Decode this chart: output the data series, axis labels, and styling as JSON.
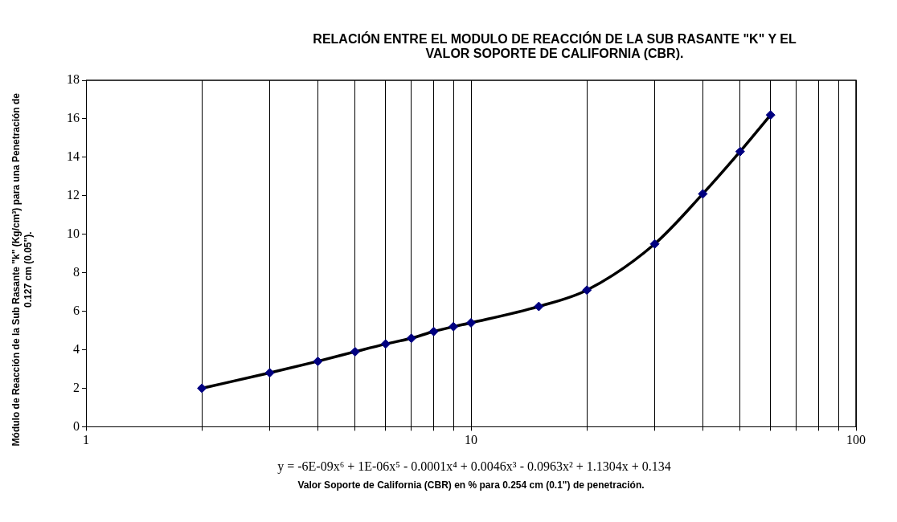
{
  "chart_data": {
    "type": "scatter",
    "title": "RELACIÓN ENTRE EL MODULO DE REACCIÓN DE LA SUB RASANTE \"K\" Y EL VALOR SOPORTE DE CALIFORNIA (CBR).",
    "xlabel": "Valor Soporte de California (CBR) en % para 0.254 cm (0.1\") de penetración.",
    "ylabel": "Módulo de Reacción de la Sub Rasante \"k\" (Kg/cm³) para una Penetración de 0.127 cm (0.05\").",
    "annotations": [
      "y = -6E-09x⁶ + 1E-06x⁵ - 0.0001x⁴ + 0.0046x³ - 0.0963x² + 1.1304x + 0.134"
    ],
    "x": [
      2,
      3,
      4,
      5,
      6,
      7,
      8,
      9,
      10,
      15,
      20,
      30,
      40,
      50,
      60
    ],
    "series": [
      {
        "type": "line",
        "color": "#000000",
        "line_style": "solid",
        "marker": "none",
        "values": [
          2.0,
          2.8,
          3.4,
          3.9,
          4.3,
          4.6,
          4.95,
          5.2,
          5.4,
          6.25,
          7.1,
          9.5,
          12.1,
          14.3,
          16.2
        ]
      },
      {
        "type": "scatter",
        "color": "#000080",
        "marker": "diamond",
        "values": [
          2.0,
          2.8,
          3.4,
          3.9,
          4.3,
          4.6,
          4.95,
          5.2,
          5.4,
          6.25,
          7.1,
          9.5,
          12.1,
          14.3,
          16.2
        ]
      }
    ],
    "log": "x",
    "xlim": [
      1,
      100
    ],
    "xticks": [
      1,
      {
        "value": 2,
        "label": null
      },
      {
        "value": 3,
        "label": null
      },
      {
        "value": 4,
        "label": null
      },
      {
        "value": 5,
        "label": null
      },
      {
        "value": 6,
        "label": null
      },
      {
        "value": 7,
        "label": null
      },
      {
        "value": 8,
        "label": null
      },
      {
        "value": 9,
        "label": null
      },
      10,
      {
        "value": 20,
        "label": null
      },
      {
        "value": 30,
        "label": null
      },
      {
        "value": 40,
        "label": null
      },
      {
        "value": 50,
        "label": null
      },
      {
        "value": 60,
        "label": null
      },
      {
        "value": 70,
        "label": null
      },
      {
        "value": 80,
        "label": null
      },
      {
        "value": 90,
        "label": null
      },
      100
    ],
    "ylim": [
      0,
      18
    ],
    "yticks": [
      0,
      2,
      4,
      6,
      8,
      10,
      12,
      14,
      16,
      18
    ],
    "grid": "x",
    "legend": false
  }
}
